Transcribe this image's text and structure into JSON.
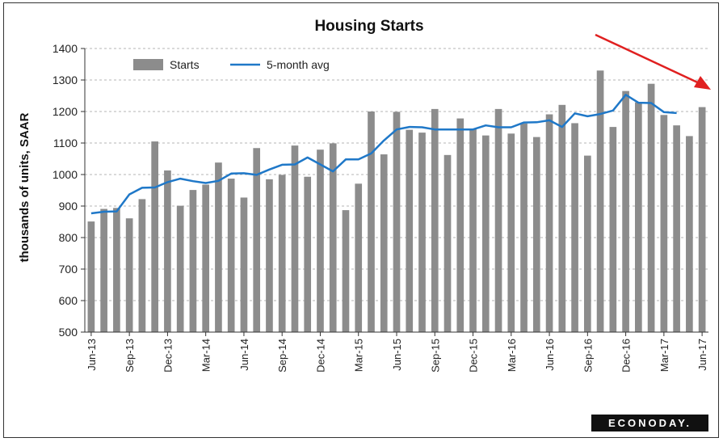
{
  "chart_data": {
    "type": "bar",
    "title": "Housing  Starts",
    "ylabel": "thousands of units, SAAR",
    "xlabel": "",
    "ylim": [
      500,
      1400
    ],
    "yticks": [
      500,
      600,
      700,
      800,
      900,
      1000,
      1100,
      1200,
      1300,
      1400
    ],
    "grid": true,
    "legend_position": "top-left",
    "categories": [
      "Jun-13",
      "Jul-13",
      "Aug-13",
      "Sep-13",
      "Oct-13",
      "Nov-13",
      "Dec-13",
      "Jan-14",
      "Feb-14",
      "Mar-14",
      "Apr-14",
      "May-14",
      "Jun-14",
      "Jul-14",
      "Aug-14",
      "Sep-14",
      "Oct-14",
      "Nov-14",
      "Dec-14",
      "Jan-15",
      "Feb-15",
      "Mar-15",
      "Apr-15",
      "May-15",
      "Jun-15",
      "Jul-15",
      "Aug-15",
      "Sep-15",
      "Oct-15",
      "Nov-15",
      "Dec-15",
      "Jan-16",
      "Feb-16",
      "Mar-16",
      "Apr-16",
      "May-16",
      "Jun-16",
      "Jul-16",
      "Aug-16",
      "Sep-16",
      "Oct-16",
      "Nov-16",
      "Dec-16",
      "Jan-17",
      "Feb-17",
      "Mar-17",
      "Apr-17",
      "May-17",
      "Jun-17"
    ],
    "tick_labels": [
      "Jun-13",
      "Sep-13",
      "Dec-13",
      "Mar-14",
      "Jun-14",
      "Sep-14",
      "Dec-14",
      "Mar-15",
      "Jun-15",
      "Sep-15",
      "Dec-15",
      "Mar-16",
      "Jun-16",
      "Sep-16",
      "Dec-16",
      "Mar-17",
      "Jun-17"
    ],
    "series": [
      {
        "name": "Starts",
        "type": "bar",
        "color": "#8c8c8c",
        "values": [
          851,
          891,
          894,
          861,
          922,
          1105,
          1013,
          901,
          951,
          968,
          1038,
          987,
          927,
          1084,
          985,
          999,
          1092,
          993,
          1079,
          1099,
          887,
          971,
          1200,
          1064,
          1199,
          1142,
          1133,
          1208,
          1062,
          1178,
          1144,
          1124,
          1208,
          1130,
          1162,
          1119,
          1191,
          1221,
          1163,
          1060,
          1330,
          1151,
          1265,
          1229,
          1288,
          1189,
          1156,
          1122,
          1214
        ]
      },
      {
        "name": "5-month avg",
        "type": "line",
        "color": "#1f78c8",
        "values": [
          877,
          882,
          883,
          937,
          958,
          959,
          976,
          987,
          979,
          973,
          980,
          1003,
          1004,
          999,
          1016,
          1031,
          1032,
          1054,
          1032,
          1010,
          1048,
          1048,
          1067,
          1108,
          1143,
          1151,
          1150,
          1143,
          1143,
          1143,
          1143,
          1156,
          1150,
          1150,
          1165,
          1166,
          1172,
          1151,
          1194,
          1185,
          1192,
          1203,
          1253,
          1228,
          1227,
          1198,
          1195,
          null,
          null
        ]
      }
    ],
    "annotation": {
      "type": "arrow",
      "color": "#e02020"
    }
  },
  "branding": {
    "logo_text": "ECONODAY."
  }
}
